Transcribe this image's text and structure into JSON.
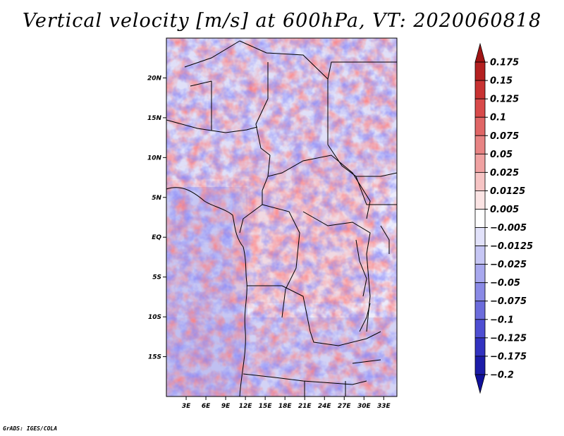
{
  "title": "Vertical velocity [m/s] at 600hPa, VT: 2020060818",
  "credit": "GrADS: IGES/COLA",
  "map": {
    "lon_range": [
      0,
      35
    ],
    "lat_range": [
      -20,
      25
    ],
    "lat_ticks": [
      {
        "value": 20,
        "label": "20N"
      },
      {
        "value": 15,
        "label": "15N"
      },
      {
        "value": 10,
        "label": "10N"
      },
      {
        "value": 5,
        "label": "5N"
      },
      {
        "value": 0,
        "label": "EQ"
      },
      {
        "value": -5,
        "label": "5S"
      },
      {
        "value": -10,
        "label": "10S"
      },
      {
        "value": -15,
        "label": "15S"
      }
    ],
    "lon_ticks": [
      {
        "value": 3,
        "label": "3E"
      },
      {
        "value": 6,
        "label": "6E"
      },
      {
        "value": 9,
        "label": "9E"
      },
      {
        "value": 12,
        "label": "12E"
      },
      {
        "value": 15,
        "label": "15E"
      },
      {
        "value": 18,
        "label": "18E"
      },
      {
        "value": 21,
        "label": "21E"
      },
      {
        "value": 24,
        "label": "24E"
      },
      {
        "value": 27,
        "label": "27E"
      },
      {
        "value": 30,
        "label": "30E"
      },
      {
        "value": 33,
        "label": "33E"
      }
    ]
  },
  "colorbar": {
    "levels": [
      "0.175",
      "0.15",
      "0.125",
      "0.1",
      "0.075",
      "0.05",
      "0.025",
      "0.0125",
      "0.005",
      "−0.005",
      "−0.0125",
      "−0.025",
      "−0.05",
      "−0.075",
      "−0.1",
      "−0.125",
      "−0.175",
      "−0.2"
    ],
    "colors": [
      "#a01414",
      "#b42020",
      "#c83232",
      "#d84a4a",
      "#e06666",
      "#e88484",
      "#f0a2a2",
      "#f6c4c4",
      "#fbe4e4",
      "#ffffff",
      "#e2e2fa",
      "#c6c6f4",
      "#a8a8ee",
      "#8a8ae6",
      "#6c6cdc",
      "#4e4ed2",
      "#3232c0",
      "#1c1ca8",
      "#10109a"
    ]
  }
}
